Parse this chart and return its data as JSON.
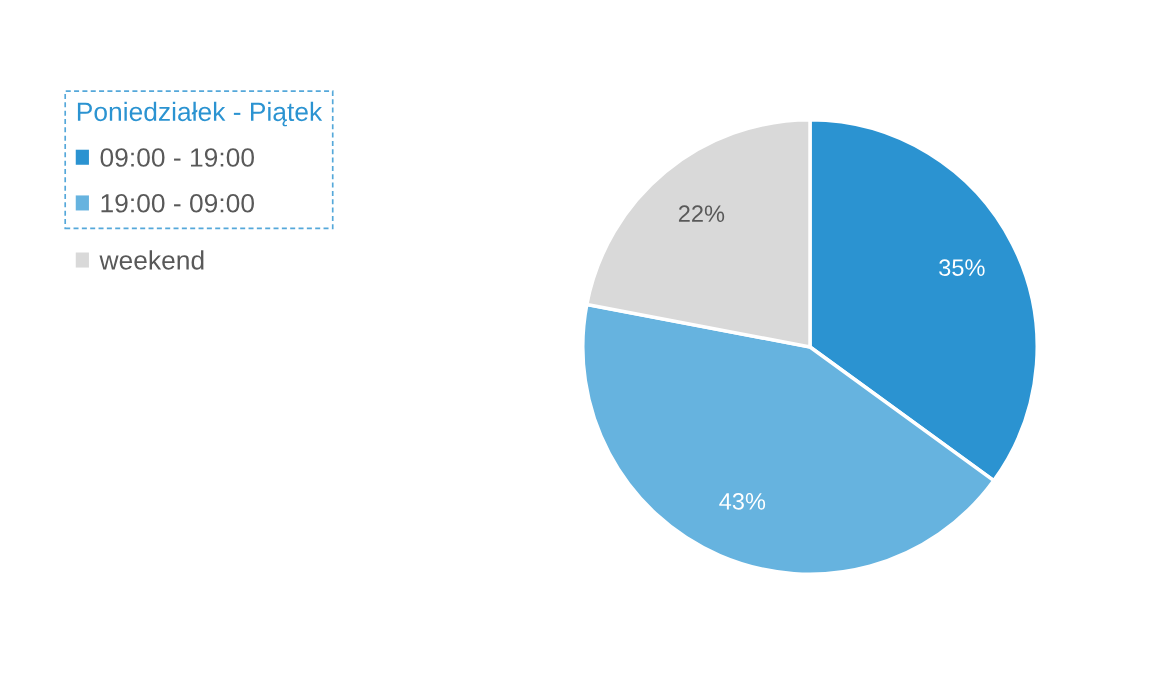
{
  "chart_data": {
    "type": "pie",
    "legend_title": "Poniedziałek - Piątek",
    "categories": [
      "09:00 - 19:00",
      "19:00 - 09:00",
      "weekend"
    ],
    "values": [
      35,
      43,
      22
    ],
    "colors": [
      "#2b93d1",
      "#66b3df",
      "#d9d9d9"
    ],
    "value_labels": [
      "35%",
      "43%",
      "22%"
    ],
    "legend": "top left"
  }
}
